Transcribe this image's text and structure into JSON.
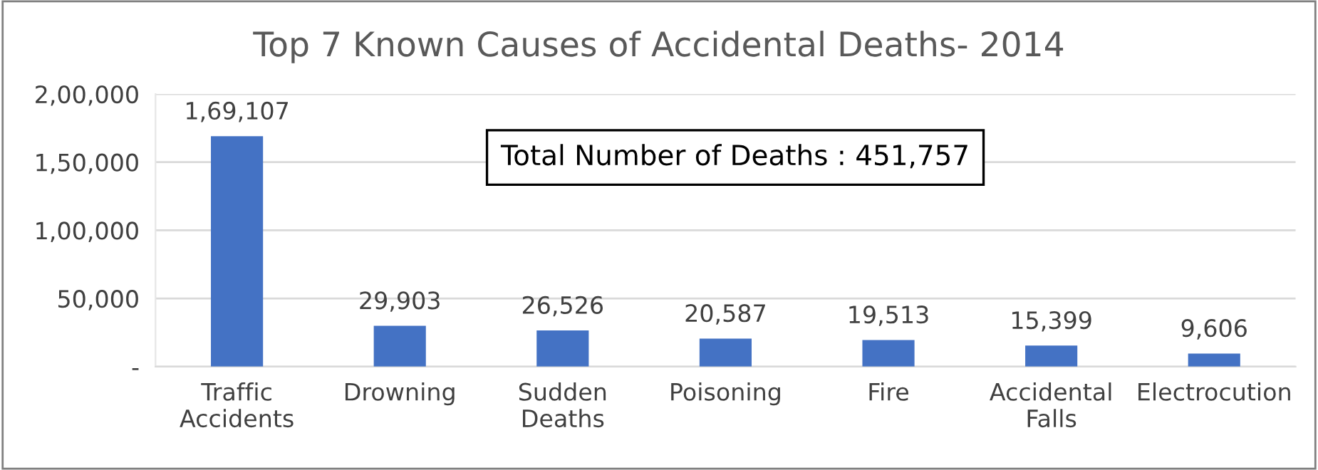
{
  "chart_data": {
    "type": "bar",
    "title": "Top 7 Known Causes of Accidental Deaths- 2014",
    "categories": [
      "Traffic Accidents",
      "Drowning",
      "Sudden Deaths",
      "Poisoning",
      "Fire",
      "Accidental Falls",
      "Electrocution"
    ],
    "values": [
      169107,
      29903,
      26526,
      20587,
      19513,
      15399,
      9606
    ],
    "value_labels": [
      "1,69,107",
      "29,903",
      "26,526",
      "20,587",
      "19,513",
      "15,399",
      "9,606"
    ],
    "color": "#4472c4",
    "ylim": [
      0,
      200000
    ],
    "yticks": [
      {
        "value": 0,
        "label": "-"
      },
      {
        "value": 50000,
        "label": "50,000"
      },
      {
        "value": 100000,
        "label": "1,00,000"
      },
      {
        "value": 150000,
        "label": "1,50,000"
      },
      {
        "value": 200000,
        "label": "2,00,000"
      }
    ],
    "grid": "y",
    "annotations": [
      "Total Number of Deaths : 451,757"
    ]
  }
}
